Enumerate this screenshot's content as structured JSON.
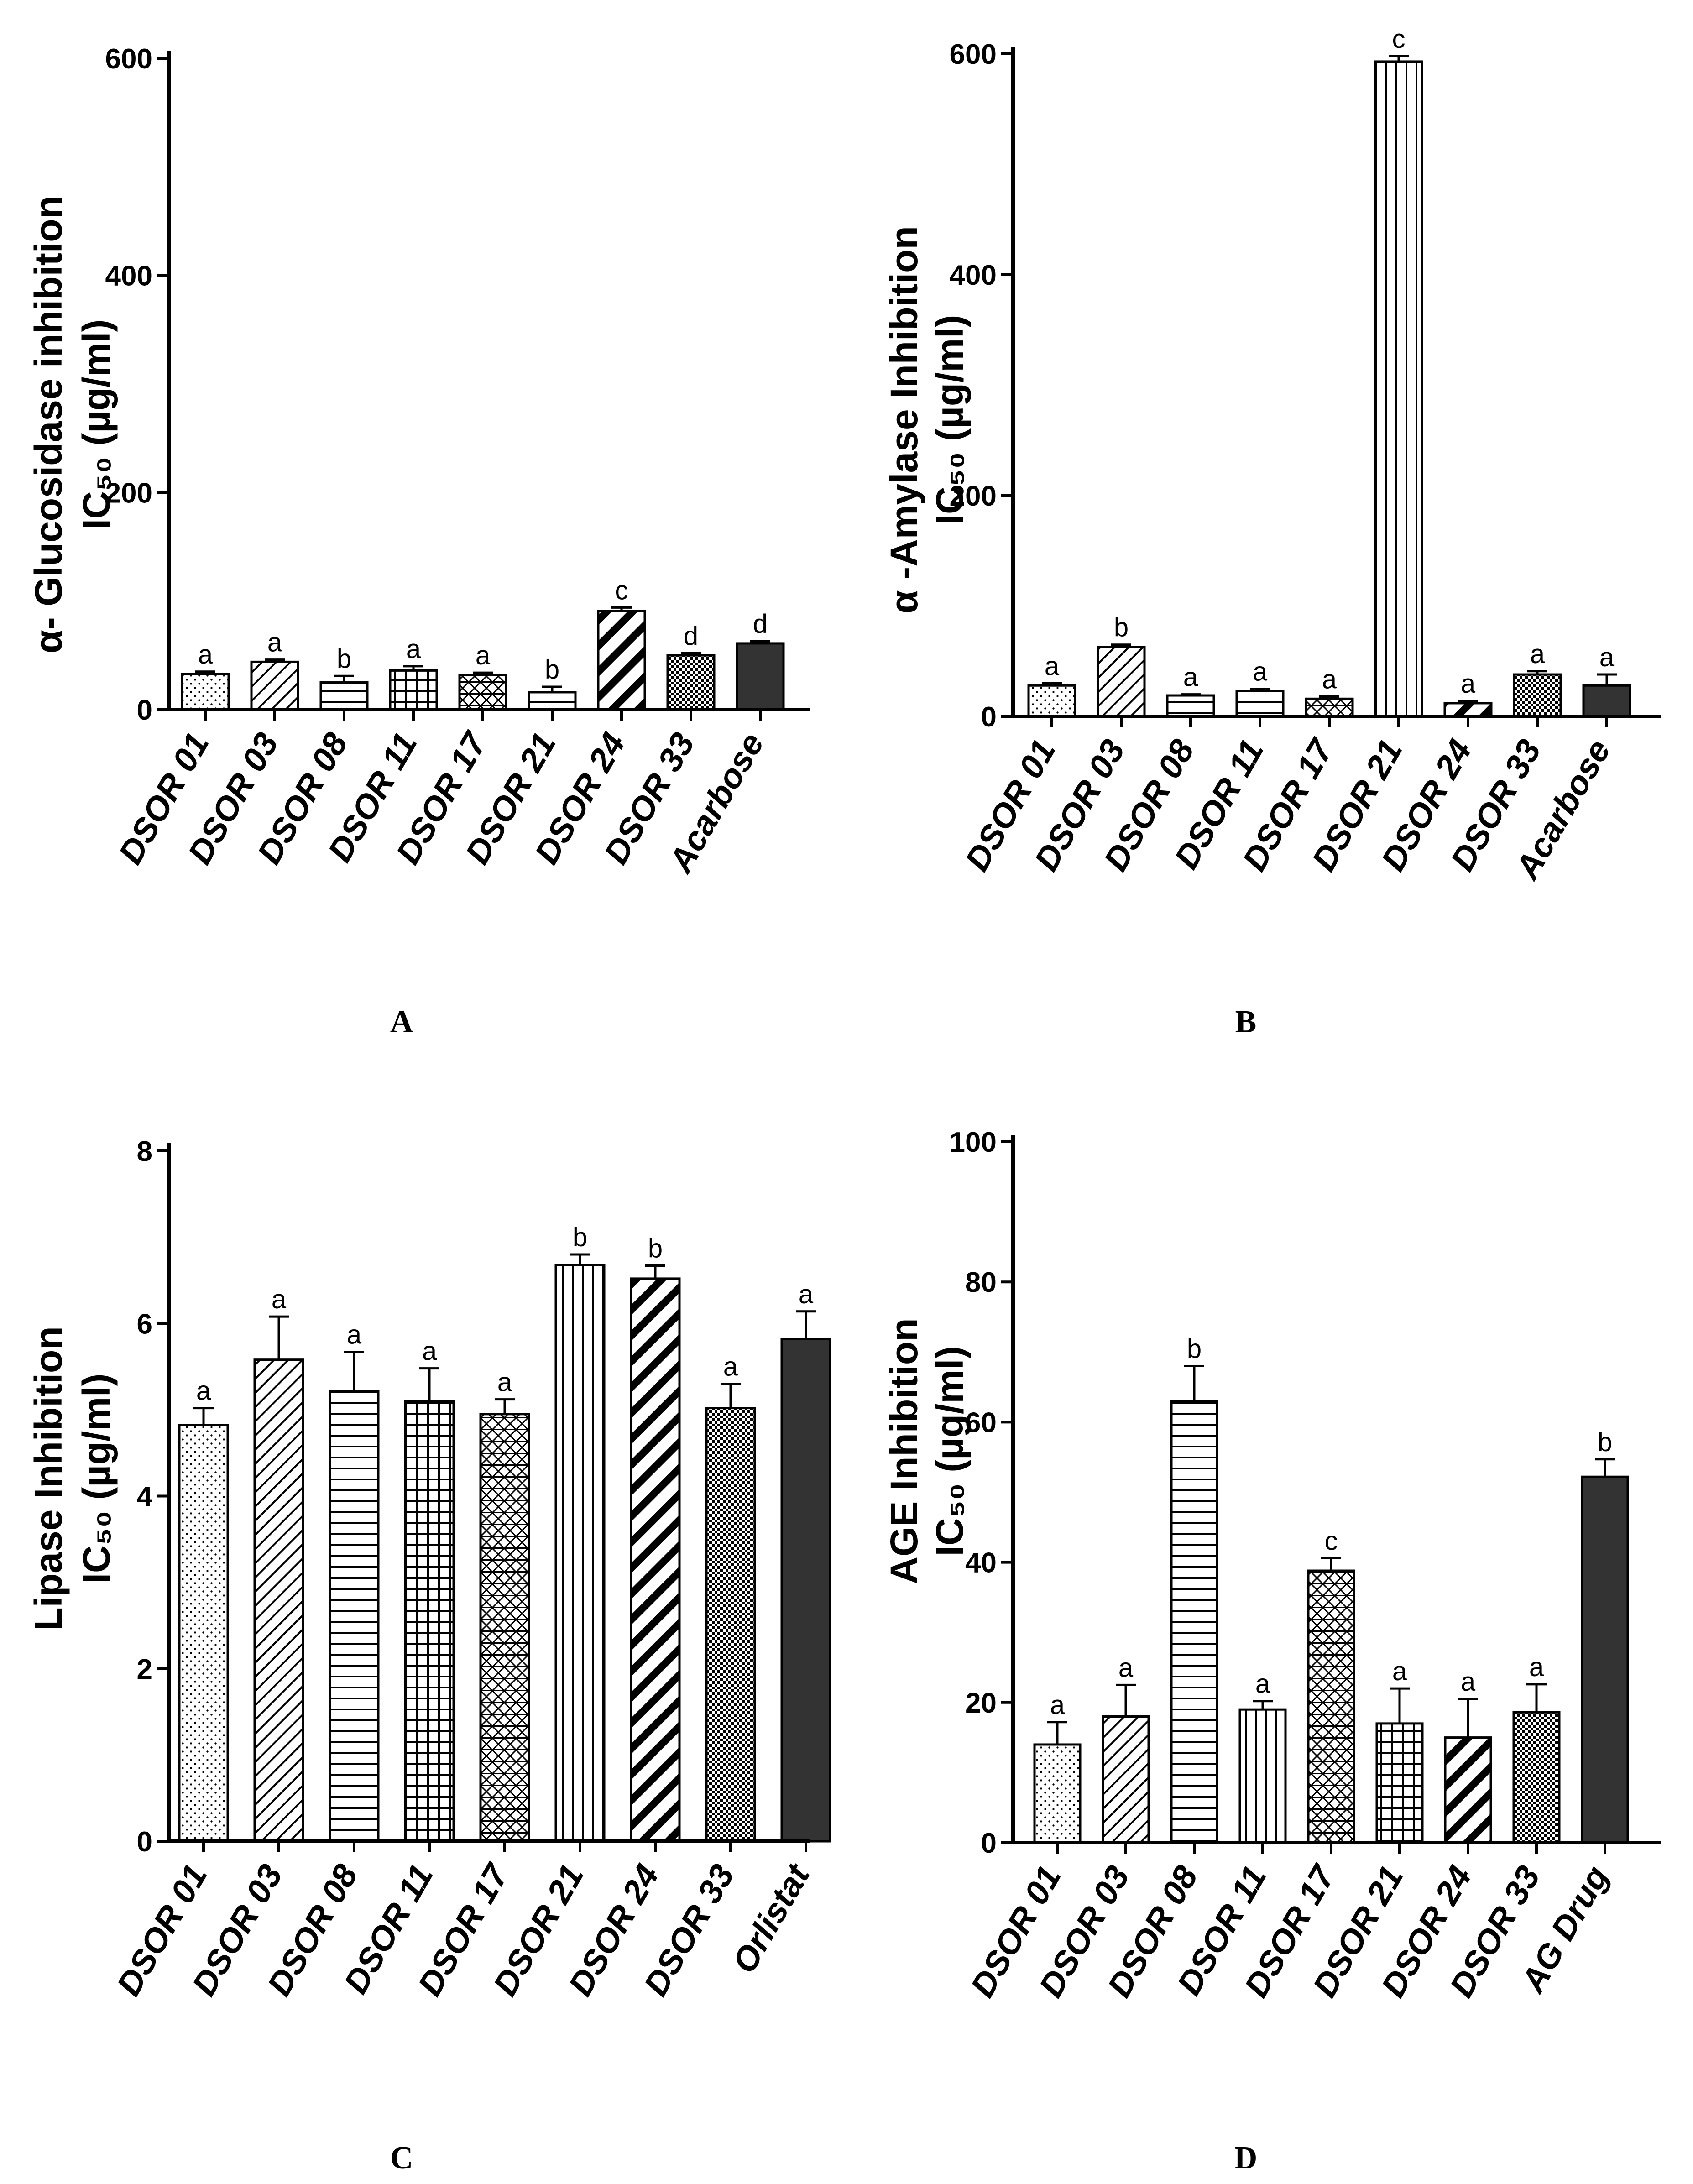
{
  "colors": {
    "ink": "#000000",
    "dark_bar": "#333333",
    "background": "#ffffff"
  },
  "chart_data": [
    {
      "panel": "A",
      "type": "bar",
      "ylabel_line1": "α- Glucosidase inhibition",
      "ylabel_line2": "IC₅₀ (µg/ml)",
      "ylim": [
        0,
        600
      ],
      "yticks": [
        0,
        200,
        400,
        600
      ],
      "categories": [
        "DSOR 01",
        "DSOR 03",
        "DSOR 08",
        "DSOR 11",
        "DSOR 17",
        "DSOR 21",
        "DSOR 24",
        "DSOR 33",
        "Acarbose"
      ],
      "values": [
        33,
        44,
        25,
        36,
        32,
        16,
        91,
        50,
        61
      ],
      "errors": [
        2,
        2,
        6,
        4,
        2,
        5,
        3,
        2,
        2
      ],
      "letters": [
        "a",
        "a",
        "b",
        "a",
        "a",
        "b",
        "c",
        "d",
        "d"
      ],
      "patterns": [
        "dots",
        "diag",
        "hlines",
        "grid",
        "weave",
        "hlines",
        "thick-diag",
        "check",
        "solid"
      ]
    },
    {
      "panel": "B",
      "type": "bar",
      "ylabel_line1": "α -Amylase Inhibition",
      "ylabel_line2": "IC₅₀ (µg/ml)",
      "ylim": [
        0,
        600
      ],
      "yticks": [
        0,
        200,
        400,
        600
      ],
      "categories": [
        "DSOR 01",
        "DSOR 03",
        "DSOR 08",
        "DSOR 11",
        "DSOR 17",
        "DSOR 21",
        "DSOR 24",
        "DSOR 33",
        "Acarbose"
      ],
      "values": [
        28,
        63,
        19,
        23,
        16,
        593,
        12,
        38,
        28
      ],
      "errors": [
        2,
        2,
        1,
        2,
        2,
        5,
        2,
        3,
        10
      ],
      "letters": [
        "a",
        "b",
        "a",
        "a",
        "a",
        "c",
        "a",
        "a",
        "a"
      ],
      "patterns": [
        "dots",
        "diag",
        "hlines",
        "hlines",
        "weave",
        "vlines",
        "thick-diag",
        "check",
        "solid"
      ]
    },
    {
      "panel": "C",
      "type": "bar",
      "ylabel_line1": "Lipase  Inhibition",
      "ylabel_line2": "IC₅₀ (µg/ml)",
      "ylim": [
        0,
        8
      ],
      "yticks": [
        0,
        2,
        4,
        6,
        8
      ],
      "categories": [
        "DSOR 01",
        "DSOR 03",
        "DSOR 08",
        "DSOR 11",
        "DSOR 17",
        "DSOR 21",
        "DSOR 24",
        "DSOR 33",
        "Orlistat"
      ],
      "values": [
        4.82,
        5.58,
        5.22,
        5.1,
        4.95,
        6.68,
        6.52,
        5.02,
        5.82
      ],
      "errors": [
        0.2,
        0.5,
        0.45,
        0.38,
        0.17,
        0.12,
        0.15,
        0.28,
        0.32
      ],
      "letters": [
        "a",
        "a",
        "a",
        "a",
        "a",
        "b",
        "b",
        "a",
        "a"
      ],
      "patterns": [
        "dots",
        "diag",
        "hlines",
        "grid",
        "weave",
        "vlines",
        "thick-diag",
        "check",
        "solid"
      ]
    },
    {
      "panel": "D",
      "type": "bar",
      "ylabel_line1": "AGE Inhibition",
      "ylabel_line2": "IC₅₀ (µg/ml)",
      "ylim": [
        0,
        100
      ],
      "yticks": [
        0,
        20,
        40,
        60,
        80,
        100
      ],
      "categories": [
        "DSOR 01",
        "DSOR 03",
        "DSOR 08",
        "DSOR 11",
        "DSOR 17",
        "DSOR 21",
        "DSOR 24",
        "DSOR 33",
        "AG Drug"
      ],
      "values": [
        14,
        18,
        63,
        19,
        38.8,
        17,
        15,
        18.6,
        52.2
      ],
      "errors": [
        3.2,
        4.5,
        5,
        1.2,
        1.8,
        5,
        5.5,
        4,
        2.5
      ],
      "letters": [
        "a",
        "a",
        "b",
        "a",
        "c",
        "a",
        "a",
        "a",
        "b"
      ],
      "patterns": [
        "dots",
        "diag",
        "hlines",
        "vlines",
        "weave",
        "grid",
        "thick-diag",
        "check",
        "solid"
      ]
    }
  ]
}
